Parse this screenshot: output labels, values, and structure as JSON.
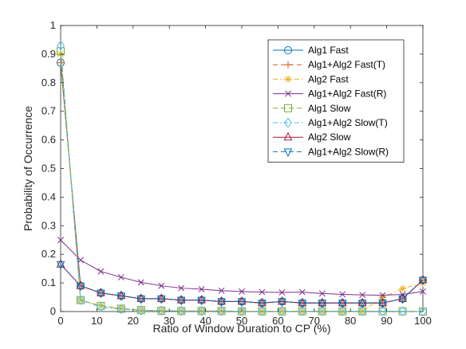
{
  "chart_data": {
    "type": "line",
    "xlabel": "Ratio of Window Duration to CP (%)",
    "ylabel": "Probability of Occurrence",
    "xlim": [
      0,
      100
    ],
    "ylim": [
      0,
      1
    ],
    "x_ticks": [
      "0",
      "10",
      "20",
      "30",
      "40",
      "50",
      "60",
      "70",
      "80",
      "90",
      "100"
    ],
    "y_ticks": [
      "0",
      "0.1",
      "0.2",
      "0.3",
      "0.4",
      "0.5",
      "0.6",
      "0.7",
      "0.8",
      "0.9",
      "1"
    ],
    "grid": false,
    "legend_position": "top-right",
    "x": [
      0,
      5.5,
      11.1,
      16.7,
      22.2,
      27.8,
      33.3,
      38.9,
      44.4,
      50,
      55.6,
      61.1,
      66.7,
      72.2,
      77.8,
      83.3,
      88.9,
      94.4,
      100
    ],
    "series": [
      {
        "name": "Alg1 Fast",
        "color": "#0072bd",
        "marker": "circle",
        "dash": "solid",
        "values": [
          0.87,
          0.09,
          0.065,
          0.055,
          0.045,
          0.045,
          0.04,
          0.04,
          0.035,
          0.035,
          0.03,
          0.035,
          0.03,
          0.03,
          0.03,
          0.03,
          0.03,
          0.045,
          0.11
        ]
      },
      {
        "name": "Alg1+Alg2 Fast(T)",
        "color": "#d95319",
        "marker": "plus",
        "dash": "dashed",
        "values": [
          0.87,
          0.09,
          0.065,
          0.055,
          0.045,
          0.045,
          0.04,
          0.04,
          0.035,
          0.035,
          0.03,
          0.035,
          0.03,
          0.03,
          0.03,
          0.03,
          0.03,
          0.045,
          0.11
        ]
      },
      {
        "name": "Alg2 Fast",
        "color": "#edb120",
        "marker": "asterisk",
        "dash": "dashdot",
        "values": [
          0.9,
          0.04,
          0.02,
          0.01,
          0.005,
          0.003,
          0.002,
          0.002,
          0.002,
          0.001,
          0.001,
          0.001,
          0.001,
          0.001,
          0.001,
          0.001,
          0.05,
          0.08,
          0.1
        ]
      },
      {
        "name": "Alg1+Alg2 Fast(R)",
        "color": "#7e2f8e",
        "marker": "x",
        "dash": "solid",
        "values": [
          0.25,
          0.18,
          0.14,
          0.12,
          0.102,
          0.09,
          0.082,
          0.078,
          0.073,
          0.07,
          0.068,
          0.067,
          0.068,
          0.063,
          0.06,
          0.058,
          0.057,
          0.06,
          0.07
        ]
      },
      {
        "name": "Alg1 Slow",
        "color": "#77ac30",
        "marker": "square",
        "dash": "dashed",
        "values": [
          0.91,
          0.04,
          0.02,
          0.01,
          0.005,
          0.003,
          0.002,
          0.002,
          0.002,
          0.001,
          0.001,
          0.001,
          0.001,
          0.001,
          0.001,
          0.001,
          0.001,
          0.001,
          0.0
        ]
      },
      {
        "name": "Alg1+Alg2 Slow(T)",
        "color": "#4dbeee",
        "marker": "diamond",
        "dash": "dashdot",
        "values": [
          0.93,
          0.04,
          0.015,
          0.008,
          0.004,
          0.003,
          0.002,
          0.002,
          0.002,
          0.001,
          0.001,
          0.001,
          0.001,
          0.001,
          0.001,
          0.001,
          0.001,
          0.001,
          0.0
        ]
      },
      {
        "name": "Alg2 Slow",
        "color": "#a2142f",
        "marker": "triangle-up",
        "dash": "solid",
        "values": [
          0.165,
          0.09,
          0.065,
          0.055,
          0.045,
          0.045,
          0.04,
          0.04,
          0.035,
          0.035,
          0.03,
          0.035,
          0.03,
          0.03,
          0.03,
          0.03,
          0.03,
          0.045,
          0.11
        ]
      },
      {
        "name": "Alg1+Alg2 Slow(R)",
        "color": "#0072bd",
        "marker": "triangle-down",
        "dash": "dashed",
        "values": [
          0.165,
          0.09,
          0.065,
          0.055,
          0.045,
          0.045,
          0.04,
          0.04,
          0.035,
          0.035,
          0.03,
          0.035,
          0.03,
          0.03,
          0.03,
          0.03,
          0.03,
          0.045,
          0.11
        ]
      }
    ]
  }
}
